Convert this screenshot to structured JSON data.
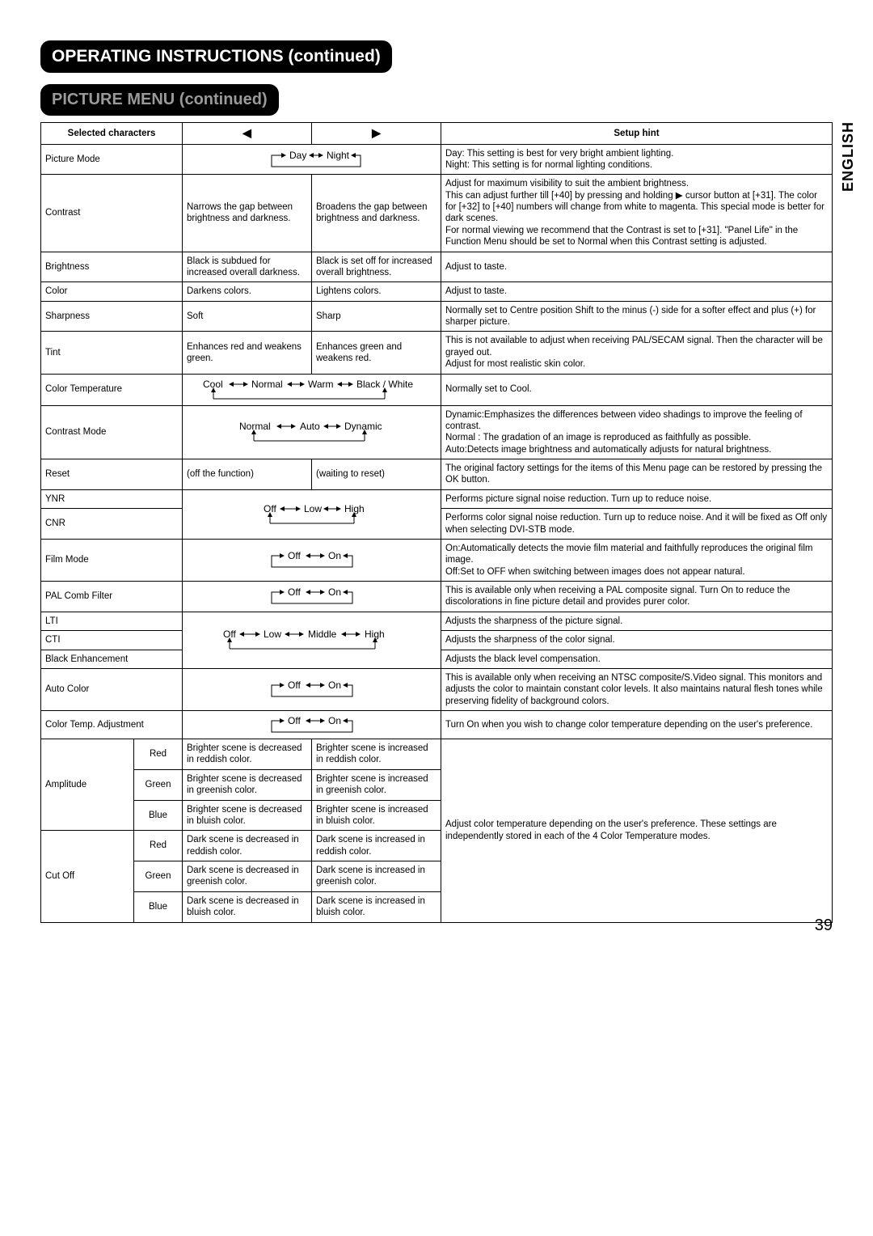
{
  "page": {
    "number": "39",
    "lang": "ENGLISH"
  },
  "headers": {
    "main": "OPERATING INSTRUCTIONS (continued)",
    "sub": "PICTURE MENU (continued)"
  },
  "table_head": {
    "selected": "Selected characters",
    "left_symbol": "◀",
    "right_symbol": "▶",
    "hint": "Setup hint"
  },
  "rows": {
    "picture_mode": {
      "label": "Picture Mode",
      "cycle": [
        "Day",
        "Night"
      ],
      "hint": "Day: This setting is best for very bright ambient lighting.\nNight: This setting is for normal lighting conditions."
    },
    "contrast": {
      "label": "Contrast",
      "left": "Narrows the gap between brightness and darkness.",
      "right": "Broadens the gap between brightness and darkness.",
      "hint": "Adjust for maximum visibility to suit the ambient brightness.\nThis can adjust further till [+40] by pressing and holding ▶ cursor button at [+31]. The color for [+32] to [+40] numbers will change from white to magenta. This special mode is better for dark scenes.\nFor normal viewing we recommend that the Contrast is set to [+31]. \"Panel Life\" in the Function Menu should be set to Normal when this Contrast setting is adjusted."
    },
    "brightness": {
      "label": "Brightness",
      "left": "Black is subdued for increased overall darkness.",
      "right": "Black is set off for increased overall brightness.",
      "hint": "Adjust to taste."
    },
    "color": {
      "label": "Color",
      "left": "Darkens colors.",
      "right": "Lightens colors.",
      "hint": "Adjust to taste."
    },
    "sharpness": {
      "label": "Sharpness",
      "left": "Soft",
      "right": "Sharp",
      "hint": "Normally set to Centre position Shift to the minus (-) side for a softer effect and plus (+) for sharper picture."
    },
    "tint": {
      "label": "Tint",
      "left": "Enhances red and weakens green.",
      "right": "Enhances green and weakens red.",
      "hint": "This is not available to adjust when receiving PAL/SECAM signal. Then the character will be grayed out.\nAdjust for most realistic skin color."
    },
    "color_temp": {
      "label": "Color Temperature",
      "cycle": [
        "Cool",
        "Normal",
        "Warm",
        "Black / White"
      ],
      "hint": "Normally set to Cool."
    },
    "contrast_mode": {
      "label": "Contrast Mode",
      "cycle": [
        "Normal",
        "Auto",
        "Dynamic"
      ],
      "hint": "Dynamic:Emphasizes the differences between video shadings to improve the feeling of contrast.\nNormal : The gradation of an image is reproduced as faithfully as possible.\nAuto:Detects image brightness and automatically adjusts for natural brightness."
    },
    "reset": {
      "label": "Reset",
      "left": "(off the function)",
      "right": "(waiting to reset)",
      "hint": "The original factory settings for the items of this Menu page can be restored by pressing the OK button."
    },
    "ynr": {
      "label": "YNR",
      "cycle": [
        "Off",
        "Low",
        "High"
      ],
      "hint": "Performs picture signal noise reduction. Turn up to reduce noise."
    },
    "cnr": {
      "label": "CNR",
      "hint": "Performs color signal noise reduction. Turn up to reduce noise. And it will be fixed as Off only when selecting DVI-STB mode."
    },
    "film_mode": {
      "label": "Film Mode",
      "cycle": [
        "Off",
        "On"
      ],
      "hint": "On:Automatically detects the movie film material and faithfully reproduces the original film image.\nOff:Set to OFF when switching between images does not appear natural."
    },
    "pal_comb": {
      "label": "PAL Comb Filter",
      "cycle": [
        "Off",
        "On"
      ],
      "hint": "This is available only when receiving a PAL composite signal. Turn On to reduce the discolorations in fine picture detail and provides purer color."
    },
    "lti": {
      "label": "LTI",
      "cycle": [
        "Off",
        "Low",
        "Middle",
        "High"
      ],
      "hint": "Adjusts the sharpness of the picture signal."
    },
    "cti": {
      "label": "CTI",
      "hint": "Adjusts the sharpness of the color signal."
    },
    "black_enh": {
      "label": "Black Enhancement",
      "hint": "Adjusts the black level compensation."
    },
    "auto_color": {
      "label": "Auto Color",
      "cycle": [
        "Off",
        "On"
      ],
      "hint": "This is available only when receiving an NTSC composite/S.Video signal. This monitors and adjusts the color to maintain constant color levels. It also maintains natural flesh tones while preserving fidelity of background colors."
    },
    "ctemp_adj": {
      "label": "Color Temp. Adjustment",
      "cycle": [
        "Off",
        "On"
      ],
      "hint": "Turn On when you wish to change color temperature depending on the user's preference."
    },
    "amplitude": {
      "label": "Amplitude",
      "red": {
        "sub": "Red",
        "left": "Brighter scene is decreased in reddish color.",
        "right": "Brighter scene is increased in reddish color."
      },
      "green": {
        "sub": "Green",
        "left": "Brighter scene is decreased in greenish color.",
        "right": "Brighter scene is increased in greenish color."
      },
      "blue": {
        "sub": "Blue",
        "left": "Brighter scene is decreased in bluish color.",
        "right": "Brighter scene is increased in bluish color."
      }
    },
    "cutoff": {
      "label": "Cut Off",
      "red": {
        "sub": "Red",
        "left": "Dark scene is decreased in reddish color.",
        "right": "Dark scene is increased in reddish color."
      },
      "green": {
        "sub": "Green",
        "left": "Dark scene is decreased in greenish color.",
        "right": "Dark scene is increased in greenish color."
      },
      "blue": {
        "sub": "Blue",
        "left": "Dark scene is decreased in bluish color.",
        "right": "Dark scene is increased in bluish color."
      },
      "hint": "Adjust color temperature depending on the user's preference. These settings are independently stored in each of the 4 Color Temperature modes."
    }
  }
}
